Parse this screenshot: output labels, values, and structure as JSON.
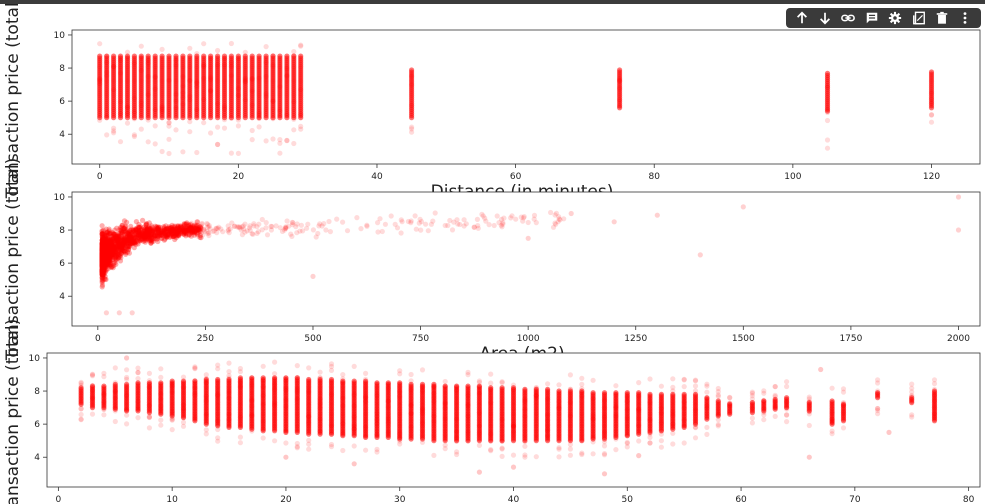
{
  "toolbar": {
    "icons": [
      "arrow-up-icon",
      "arrow-down-icon",
      "link-icon",
      "comment-icon",
      "gear-icon",
      "mirror-cell-icon",
      "trash-icon",
      "more-vert-icon"
    ]
  },
  "colors": {
    "marker": "#ff0000",
    "axis": "#000000",
    "toolbar_bg": "#3a3a3a"
  },
  "chart_data": [
    {
      "type": "scatter",
      "xlabel": "Distance (in minutes)",
      "ylabel": "Transaction price (total)",
      "xlim": [
        -4,
        127
      ],
      "ylim": [
        2.2,
        10.3
      ],
      "xticks": [
        0,
        20,
        40,
        60,
        80,
        100,
        120
      ],
      "yticks": [
        4,
        6,
        8,
        10
      ],
      "clusters": [
        {
          "x_from": 0,
          "x_to": 29,
          "step": 1,
          "y_range": [
            5.0,
            8.8
          ],
          "outlier_range": [
            2.8,
            9.5
          ]
        },
        {
          "x_from": 45,
          "x_to": 45,
          "step": 1,
          "y_range": [
            5.0,
            8.0
          ],
          "outlier_range": [
            2.6,
            8.6
          ]
        },
        {
          "x_from": 75,
          "x_to": 75,
          "step": 1,
          "y_range": [
            5.6,
            7.9
          ],
          "outlier_range": [
            5.3,
            8.1
          ]
        },
        {
          "x_from": 105,
          "x_to": 105,
          "step": 1,
          "y_range": [
            5.4,
            7.8
          ],
          "outlier_range": [
            3.0,
            8.0
          ]
        },
        {
          "x_from": 120,
          "x_to": 120,
          "step": 1,
          "y_range": [
            5.6,
            7.8
          ],
          "outlier_range": [
            3.0,
            8.0
          ]
        }
      ]
    },
    {
      "type": "scatter",
      "xlabel": "Area (m2)",
      "ylabel": "Transaction price (total)",
      "xlim": [
        -60,
        2050
      ],
      "ylim": [
        2.2,
        10.3
      ],
      "xticks": [
        0,
        250,
        500,
        750,
        1000,
        1250,
        1500,
        1750,
        2000
      ],
      "yticks": [
        4,
        6,
        8,
        10
      ],
      "trend": [
        {
          "x": 10,
          "y": 6.4,
          "spread": 2.2
        },
        {
          "x": 50,
          "y": 7.2,
          "spread": 1.6
        },
        {
          "x": 100,
          "y": 7.7,
          "spread": 1.0
        },
        {
          "x": 200,
          "y": 8.0,
          "spread": 0.7
        },
        {
          "x": 300,
          "y": 8.1,
          "spread": 0.7
        },
        {
          "x": 600,
          "y": 8.3,
          "spread": 1.0
        },
        {
          "x": 1000,
          "y": 8.6,
          "spread": 1.0
        },
        {
          "x": 1500,
          "y": 9.0,
          "spread": 0.8
        },
        {
          "x": 2000,
          "y": 9.2,
          "spread": 1.0
        }
      ],
      "outliers": [
        {
          "x": 2000,
          "y": 10.0
        },
        {
          "x": 2000,
          "y": 8.0
        },
        {
          "x": 1500,
          "y": 9.4
        },
        {
          "x": 1400,
          "y": 6.5
        },
        {
          "x": 1300,
          "y": 8.9
        },
        {
          "x": 1200,
          "y": 8.5
        },
        {
          "x": 1100,
          "y": 9.0
        },
        {
          "x": 1000,
          "y": 7.5
        },
        {
          "x": 50,
          "y": 3.0
        },
        {
          "x": 80,
          "y": 3.0
        },
        {
          "x": 20,
          "y": 3.0
        },
        {
          "x": 500,
          "y": 5.2
        }
      ]
    },
    {
      "type": "scatter",
      "xlabel": "",
      "ylabel": "Transaction price (total)",
      "xlim": [
        -1,
        81
      ],
      "ylim": [
        2.2,
        10.3
      ],
      "xticks": [
        0,
        10,
        20,
        30,
        40,
        50,
        60,
        70,
        80
      ],
      "yticks": [
        4,
        6,
        8,
        10
      ],
      "columns": [
        {
          "x": 2,
          "lo": 7.2,
          "hi": 8.2
        },
        {
          "x": 3,
          "lo": 7.0,
          "hi": 8.3
        },
        {
          "x": 4,
          "lo": 7.0,
          "hi": 8.3
        },
        {
          "x": 5,
          "lo": 6.9,
          "hi": 8.4
        },
        {
          "x": 6,
          "lo": 6.8,
          "hi": 8.4
        },
        {
          "x": 7,
          "lo": 6.8,
          "hi": 8.5
        },
        {
          "x": 8,
          "lo": 6.7,
          "hi": 8.5
        },
        {
          "x": 9,
          "lo": 6.6,
          "hi": 8.5
        },
        {
          "x": 10,
          "lo": 6.5,
          "hi": 8.6
        },
        {
          "x": 11,
          "lo": 6.4,
          "hi": 8.6
        },
        {
          "x": 12,
          "lo": 6.2,
          "hi": 8.6
        },
        {
          "x": 13,
          "lo": 6.0,
          "hi": 8.7
        },
        {
          "x": 14,
          "lo": 5.9,
          "hi": 8.7
        },
        {
          "x": 15,
          "lo": 5.8,
          "hi": 8.7
        },
        {
          "x": 16,
          "lo": 5.8,
          "hi": 8.8
        },
        {
          "x": 17,
          "lo": 5.7,
          "hi": 8.8
        },
        {
          "x": 18,
          "lo": 5.6,
          "hi": 8.8
        },
        {
          "x": 19,
          "lo": 5.6,
          "hi": 8.8
        },
        {
          "x": 20,
          "lo": 5.5,
          "hi": 8.8
        },
        {
          "x": 21,
          "lo": 5.5,
          "hi": 8.8
        },
        {
          "x": 22,
          "lo": 5.4,
          "hi": 8.7
        },
        {
          "x": 23,
          "lo": 5.4,
          "hi": 8.7
        },
        {
          "x": 24,
          "lo": 5.4,
          "hi": 8.7
        },
        {
          "x": 25,
          "lo": 5.3,
          "hi": 8.6
        },
        {
          "x": 26,
          "lo": 5.3,
          "hi": 8.6
        },
        {
          "x": 27,
          "lo": 5.2,
          "hi": 8.6
        },
        {
          "x": 28,
          "lo": 5.2,
          "hi": 8.5
        },
        {
          "x": 29,
          "lo": 5.2,
          "hi": 8.5
        },
        {
          "x": 30,
          "lo": 5.1,
          "hi": 8.5
        },
        {
          "x": 31,
          "lo": 5.1,
          "hi": 8.4
        },
        {
          "x": 32,
          "lo": 5.1,
          "hi": 8.4
        },
        {
          "x": 33,
          "lo": 5.0,
          "hi": 8.4
        },
        {
          "x": 34,
          "lo": 5.0,
          "hi": 8.3
        },
        {
          "x": 35,
          "lo": 5.0,
          "hi": 8.3
        },
        {
          "x": 36,
          "lo": 5.0,
          "hi": 8.3
        },
        {
          "x": 37,
          "lo": 5.0,
          "hi": 8.3
        },
        {
          "x": 38,
          "lo": 5.0,
          "hi": 8.2
        },
        {
          "x": 39,
          "lo": 5.0,
          "hi": 8.2
        },
        {
          "x": 40,
          "lo": 5.0,
          "hi": 8.2
        },
        {
          "x": 41,
          "lo": 5.0,
          "hi": 8.1
        },
        {
          "x": 42,
          "lo": 5.0,
          "hi": 8.1
        },
        {
          "x": 43,
          "lo": 5.0,
          "hi": 8.1
        },
        {
          "x": 44,
          "lo": 5.0,
          "hi": 8.0
        },
        {
          "x": 45,
          "lo": 5.0,
          "hi": 8.0
        },
        {
          "x": 46,
          "lo": 5.0,
          "hi": 8.0
        },
        {
          "x": 47,
          "lo": 5.1,
          "hi": 7.9
        },
        {
          "x": 48,
          "lo": 5.1,
          "hi": 7.9
        },
        {
          "x": 49,
          "lo": 5.2,
          "hi": 7.9
        },
        {
          "x": 50,
          "lo": 5.3,
          "hi": 7.9
        },
        {
          "x": 51,
          "lo": 5.4,
          "hi": 7.9
        },
        {
          "x": 52,
          "lo": 5.5,
          "hi": 7.8
        },
        {
          "x": 53,
          "lo": 5.6,
          "hi": 7.8
        },
        {
          "x": 54,
          "lo": 5.7,
          "hi": 7.8
        },
        {
          "x": 55,
          "lo": 5.8,
          "hi": 7.8
        },
        {
          "x": 56,
          "lo": 6.0,
          "hi": 7.8
        },
        {
          "x": 57,
          "lo": 6.3,
          "hi": 7.6
        },
        {
          "x": 58,
          "lo": 6.5,
          "hi": 7.4
        },
        {
          "x": 59,
          "lo": 6.6,
          "hi": 7.2
        },
        {
          "x": 61,
          "lo": 6.7,
          "hi": 7.3
        },
        {
          "x": 62,
          "lo": 6.8,
          "hi": 7.4
        },
        {
          "x": 63,
          "lo": 6.9,
          "hi": 7.5
        },
        {
          "x": 64,
          "lo": 7.0,
          "hi": 7.6
        },
        {
          "x": 66,
          "lo": 6.8,
          "hi": 7.3
        },
        {
          "x": 68,
          "lo": 6.0,
          "hi": 7.4
        },
        {
          "x": 69,
          "lo": 6.2,
          "hi": 7.2
        },
        {
          "x": 72,
          "lo": 7.6,
          "hi": 7.9
        },
        {
          "x": 75,
          "lo": 7.3,
          "hi": 7.6
        },
        {
          "x": 77,
          "lo": 6.2,
          "hi": 8.0
        }
      ],
      "outliers": [
        {
          "x": 48,
          "y": 3.0
        },
        {
          "x": 6,
          "y": 10.0
        },
        {
          "x": 26,
          "y": 3.6
        },
        {
          "x": 20,
          "y": 4.0
        },
        {
          "x": 66,
          "y": 4.0
        },
        {
          "x": 37,
          "y": 3.1
        },
        {
          "x": 40,
          "y": 3.4
        },
        {
          "x": 51,
          "y": 4.1
        },
        {
          "x": 73,
          "y": 5.5
        },
        {
          "x": 67,
          "y": 9.3
        }
      ]
    }
  ]
}
